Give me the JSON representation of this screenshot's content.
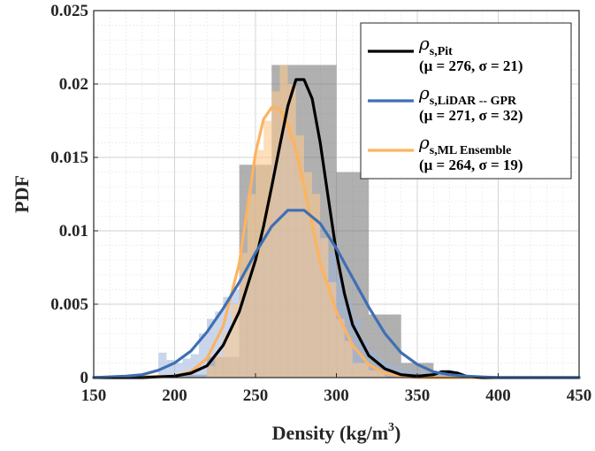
{
  "chart_data": {
    "type": "histogram+line",
    "xlabel": "Density (kg/m",
    "xlabel_sup": "3",
    "xlabel_tail": ")",
    "ylabel": "PDF",
    "xlim": [
      150,
      450
    ],
    "ylim": [
      0,
      0.025
    ],
    "x_ticks": [
      150,
      200,
      250,
      300,
      350,
      400,
      450
    ],
    "y_ticks": [
      0,
      0.005,
      0.01,
      0.015,
      0.02,
      0.025
    ],
    "y_tick_labels": [
      "0",
      "0.005",
      "0.01",
      "0.015",
      "0.02",
      "0.025"
    ],
    "grid": true,
    "minor_grid": true,
    "legend_position": "top-right",
    "colors": {
      "pit": "#000000",
      "lidar": "#3f6fb4",
      "ml": "#fdb35f",
      "pit_hist": "#6f6f6f",
      "lidar_hist": "#9fb4dd",
      "ml_hist": "#fcc98f"
    },
    "series": [
      {
        "key": "pit",
        "name": "Pit",
        "mu_text": "μ = 276",
        "sigma_text": "σ = 21",
        "curve_x": [
          150,
          180,
          200,
          210,
          220,
          230,
          240,
          250,
          255,
          260,
          265,
          270,
          275,
          280,
          285,
          290,
          295,
          300,
          305,
          310,
          320,
          330,
          340,
          350,
          360,
          365,
          370,
          375,
          380,
          390,
          400,
          450
        ],
        "curve_y": [
          0,
          0,
          0.0001,
          0.0003,
          0.0008,
          0.0022,
          0.0045,
          0.008,
          0.0103,
          0.013,
          0.0158,
          0.0185,
          0.0203,
          0.0203,
          0.019,
          0.016,
          0.0122,
          0.0085,
          0.0057,
          0.0036,
          0.0015,
          0.0006,
          0.0002,
          0.0001,
          0.0002,
          0.0004,
          0.0004,
          0.0003,
          0.0001,
          0,
          0,
          0
        ],
        "hist": {
          "edges": [
            150,
            200,
            220,
            240,
            260,
            280,
            300,
            320,
            340,
            360,
            380,
            400,
            450
          ],
          "values": [
            0,
            0.0002,
            0.0014,
            0.0145,
            0.0213,
            0.0213,
            0.014,
            0.0043,
            0.001,
            0.0002,
            0,
            0
          ]
        }
      },
      {
        "key": "lidar",
        "name": "LiDAR -- GPR",
        "mu_text": "μ = 271",
        "sigma_text": "σ = 32",
        "curve_x": [
          150,
          170,
          180,
          190,
          200,
          210,
          220,
          230,
          240,
          250,
          260,
          270,
          280,
          290,
          300,
          310,
          320,
          330,
          340,
          350,
          360,
          370,
          380,
          390,
          400,
          450
        ],
        "curve_y": [
          0,
          0.0001,
          0.0002,
          0.0005,
          0.001,
          0.0018,
          0.0031,
          0.0047,
          0.0065,
          0.0085,
          0.0103,
          0.0114,
          0.0114,
          0.0105,
          0.0088,
          0.0068,
          0.0048,
          0.003,
          0.0017,
          0.0009,
          0.0004,
          0.0002,
          0.0001,
          5e-05,
          0,
          0
        ],
        "hist": {
          "edges": [
            150,
            190,
            195,
            200,
            205,
            210,
            215,
            220,
            225,
            230,
            235,
            240,
            245,
            250,
            255,
            260,
            265,
            270,
            275,
            280,
            285,
            290,
            295,
            300,
            305,
            310,
            315,
            320,
            325,
            330,
            335,
            340,
            345,
            350,
            355,
            360,
            370,
            380,
            390,
            400,
            450
          ],
          "values": [
            0,
            0.0017,
            0.0012,
            0.001,
            0.0013,
            0.0016,
            0.003,
            0.004,
            0.0045,
            0.0055,
            0.006,
            0.007,
            0.0076,
            0.0082,
            0.01,
            0.0145,
            0.017,
            0.016,
            0.0135,
            0.0118,
            0.0105,
            0.0095,
            0.0085,
            0.007,
            0.0052,
            0.004,
            0.0025,
            0.0018,
            0.0013,
            0.001,
            0.0008,
            0.0006,
            0.0005,
            0.0004,
            0.0003,
            0.0002,
            0.0002,
            0.0001,
            0,
            0
          ]
        }
      },
      {
        "key": "ml",
        "name": "ML Ensemble",
        "mu_text": "μ = 264",
        "sigma_text": "σ = 19",
        "curve_x": [
          150,
          200,
          210,
          220,
          230,
          240,
          245,
          250,
          255,
          260,
          265,
          270,
          275,
          280,
          285,
          290,
          300,
          310,
          320,
          330,
          340,
          350,
          360,
          450
        ],
        "curve_y": [
          0,
          0.0001,
          0.0004,
          0.0013,
          0.0035,
          0.0078,
          0.0115,
          0.0153,
          0.0176,
          0.0184,
          0.0183,
          0.0172,
          0.0155,
          0.013,
          0.0104,
          0.0078,
          0.0045,
          0.0022,
          0.0009,
          0.0003,
          0.0001,
          0,
          0,
          0
        ],
        "hist": {
          "edges": [
            150,
            220,
            225,
            230,
            235,
            240,
            245,
            250,
            255,
            260,
            265,
            270,
            275,
            280,
            285,
            290,
            295,
            300,
            305,
            310,
            320,
            330,
            450
          ],
          "values": [
            0,
            0.0008,
            0.0015,
            0.003,
            0.005,
            0.0085,
            0.0125,
            0.0155,
            0.0175,
            0.0195,
            0.0213,
            0.02,
            0.0165,
            0.014,
            0.0125,
            0.0095,
            0.0065,
            0.004,
            0.0025,
            0.001,
            0.0005,
            0
          ]
        }
      }
    ],
    "legend": [
      {
        "key": "pit",
        "sub": "s,Pit",
        "stats": "(μ = 276, σ = 21)"
      },
      {
        "key": "lidar",
        "sub": "s,LiDAR -- GPR",
        "stats": "(μ = 271, σ = 32)"
      },
      {
        "key": "ml",
        "sub": "s,ML Ensemble",
        "stats": "(μ = 264, σ = 19)"
      }
    ],
    "legend_symbol": "ρ"
  }
}
